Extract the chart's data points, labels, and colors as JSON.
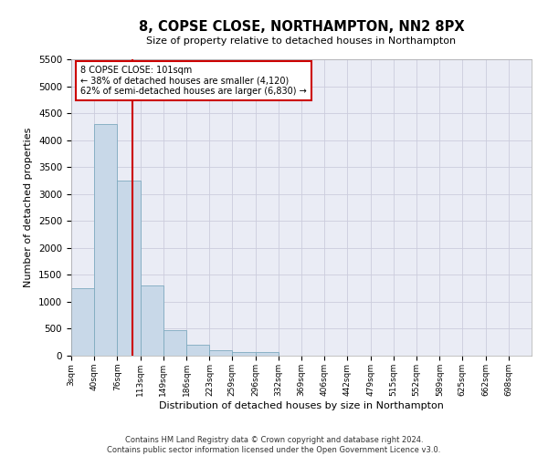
{
  "title": "8, COPSE CLOSE, NORTHAMPTON, NN2 8PX",
  "subtitle": "Size of property relative to detached houses in Northampton",
  "xlabel": "Distribution of detached houses by size in Northampton",
  "ylabel": "Number of detached properties",
  "footer_line1": "Contains HM Land Registry data © Crown copyright and database right 2024.",
  "footer_line2": "Contains public sector information licensed under the Open Government Licence v3.0.",
  "annotation_title": "8 COPSE CLOSE: 101sqm",
  "annotation_line1": "← 38% of detached houses are smaller (4,120)",
  "annotation_line2": "62% of semi-detached houses are larger (6,830) →",
  "property_size": 101,
  "bar_edges": [
    3,
    40,
    76,
    113,
    149,
    186,
    223,
    259,
    296,
    332,
    369,
    406,
    442,
    479,
    515,
    552,
    589,
    625,
    662,
    698,
    735
  ],
  "bar_heights": [
    1250,
    4300,
    3250,
    1300,
    480,
    200,
    100,
    70,
    60,
    0,
    0,
    0,
    0,
    0,
    0,
    0,
    0,
    0,
    0,
    0
  ],
  "bar_color": "#c8d8e8",
  "bar_edgecolor": "#7eaabf",
  "vline_color": "#cc0000",
  "vline_x": 101,
  "annotation_box_color": "#cc0000",
  "ylim": [
    0,
    5500
  ],
  "yticks": [
    0,
    500,
    1000,
    1500,
    2000,
    2500,
    3000,
    3500,
    4000,
    4500,
    5000,
    5500
  ],
  "grid_color": "#ccccdd",
  "bg_color": "#eaecf5"
}
